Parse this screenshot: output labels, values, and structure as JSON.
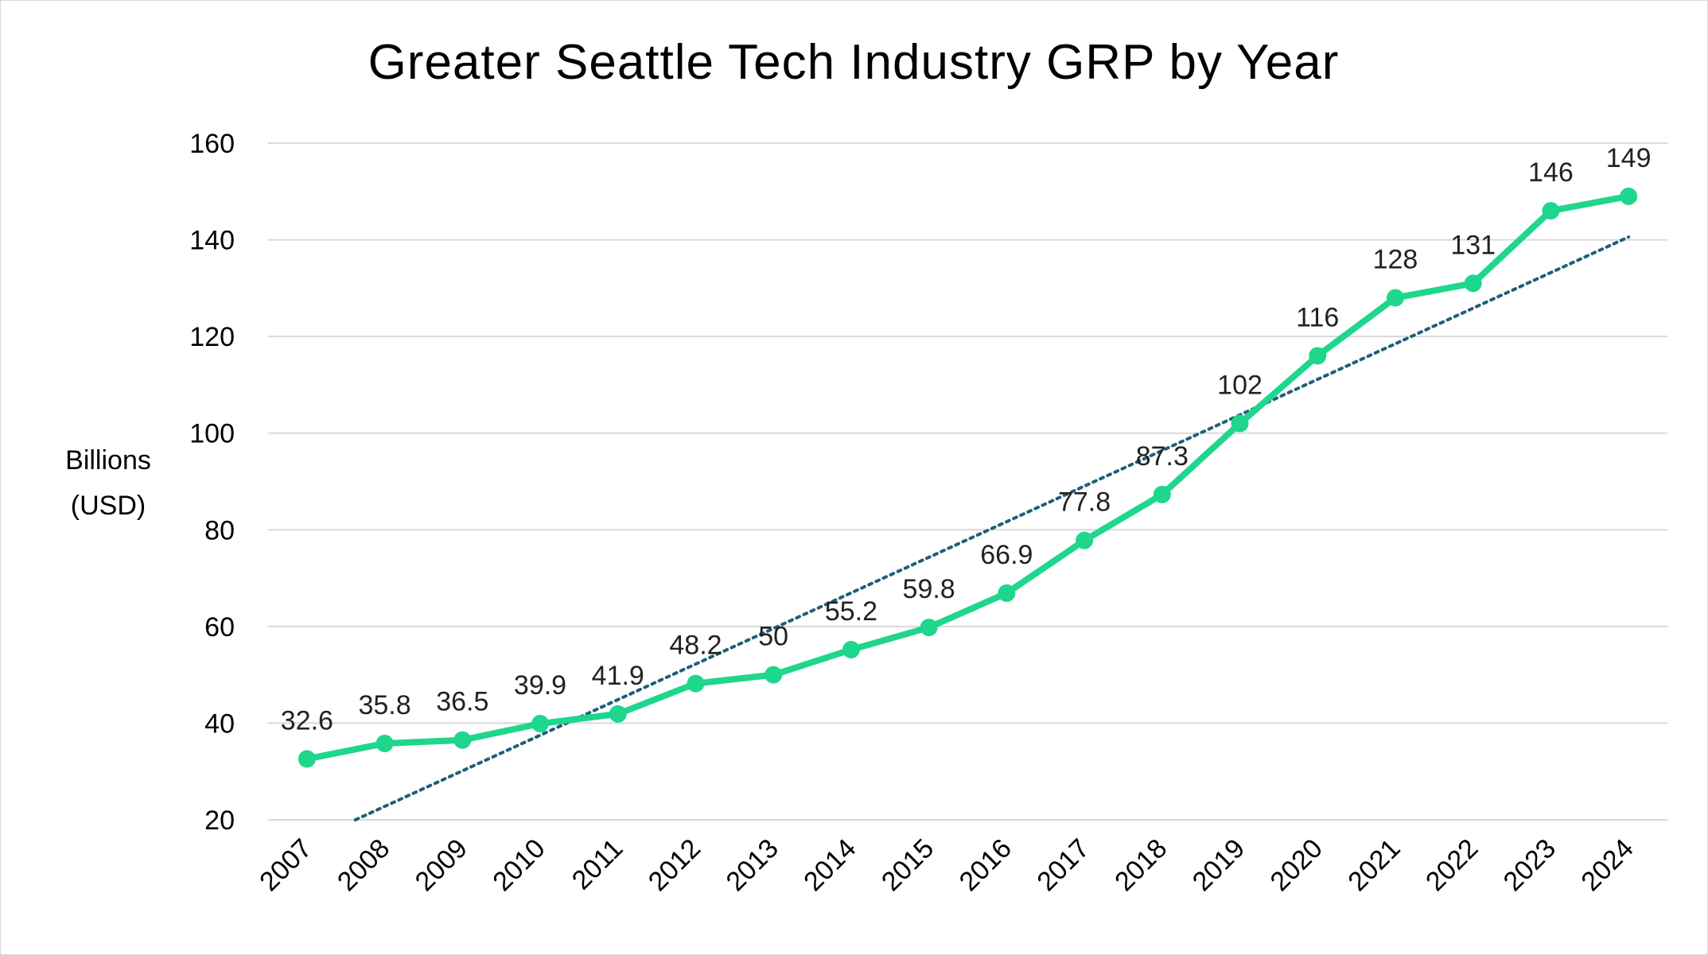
{
  "chart_data": {
    "type": "line",
    "title": "Greater Seattle Tech Industry GRP by Year",
    "ylabel_lines": [
      "Billions",
      "(USD)"
    ],
    "categories": [
      "2007",
      "2008",
      "2009",
      "2010",
      "2011",
      "2012",
      "2013",
      "2014",
      "2015",
      "2016",
      "2017",
      "2018",
      "2019",
      "2020",
      "2021",
      "2022",
      "2023",
      "2024"
    ],
    "series": [
      {
        "values": [
          32.6,
          35.8,
          36.5,
          39.9,
          41.9,
          48.2,
          50,
          55.2,
          59.8,
          66.9,
          77.8,
          87.3,
          102,
          116,
          128,
          131,
          146,
          149
        ],
        "data_labels": [
          "32.6",
          "35.8",
          "36.5",
          "39.9",
          "41.9",
          "48.2",
          "50",
          "55.2",
          "59.8",
          "66.9",
          "77.8",
          "87.3",
          "102",
          "116",
          "128",
          "131",
          "146",
          "149"
        ],
        "color": "#1fd68d"
      }
    ],
    "trendline": {
      "type": "linear",
      "style": "dotted",
      "color": "#1f5f7a"
    },
    "yticks": [
      20,
      40,
      60,
      80,
      100,
      120,
      140,
      160
    ],
    "ylim": [
      20,
      160
    ],
    "grid": true,
    "legend": "none"
  }
}
